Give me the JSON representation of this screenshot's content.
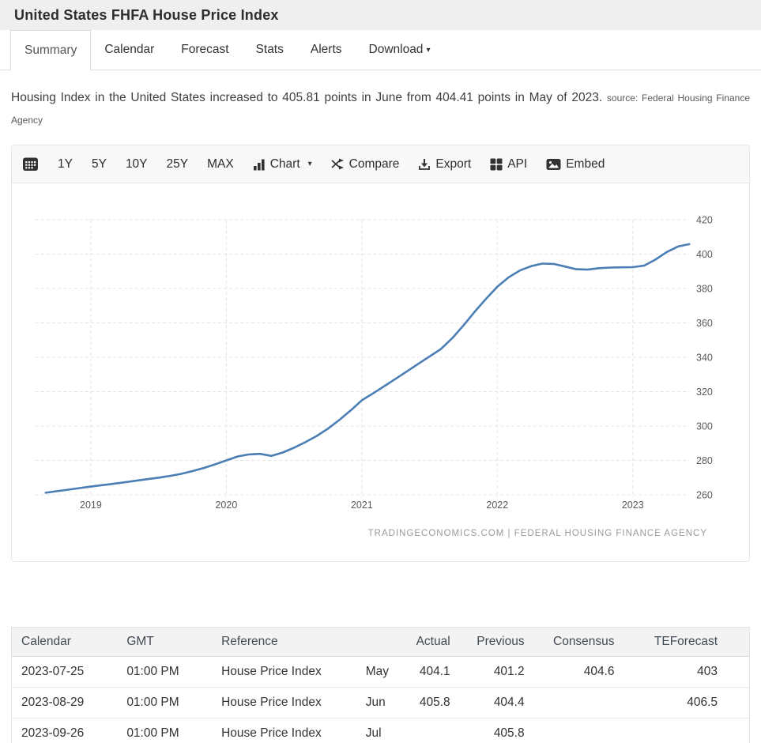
{
  "header": {
    "title": "United States FHFA House Price Index"
  },
  "tabs": {
    "items": [
      {
        "label": "Summary",
        "active": true
      },
      {
        "label": "Calendar",
        "active": false
      },
      {
        "label": "Forecast",
        "active": false
      },
      {
        "label": "Stats",
        "active": false
      },
      {
        "label": "Alerts",
        "active": false
      },
      {
        "label": "Download",
        "active": false
      }
    ]
  },
  "description": {
    "text": "Housing Index in the United States increased to 405.81 points in June from 404.41 points in May of 2023.",
    "source": "source: Federal Housing Finance Agency"
  },
  "toolbar": {
    "calendar_icon": "calendar-icon",
    "ranges": [
      "1Y",
      "5Y",
      "10Y",
      "25Y",
      "MAX"
    ],
    "chart": "Chart",
    "compare": "Compare",
    "export": "Export",
    "api": "API",
    "embed": "Embed"
  },
  "chart_data": {
    "type": "line",
    "title": "United States FHFA House Price Index",
    "xlabel": "",
    "ylabel": "",
    "ylim": [
      260,
      420
    ],
    "ytick_step": 20,
    "yticks": [
      260,
      280,
      300,
      320,
      340,
      360,
      380,
      400,
      420
    ],
    "xtick_labels": [
      "2019",
      "2020",
      "2021",
      "2022",
      "2023"
    ],
    "grid": "dashed",
    "legend": "none",
    "line_color": "#4a7eb5",
    "x": [
      "2018-09",
      "2018-10",
      "2018-11",
      "2018-12",
      "2019-01",
      "2019-02",
      "2019-03",
      "2019-04",
      "2019-05",
      "2019-06",
      "2019-07",
      "2019-08",
      "2019-09",
      "2019-10",
      "2019-11",
      "2019-12",
      "2020-01",
      "2020-02",
      "2020-03",
      "2020-04",
      "2020-05",
      "2020-06",
      "2020-07",
      "2020-08",
      "2020-09",
      "2020-10",
      "2020-11",
      "2020-12",
      "2021-01",
      "2021-02",
      "2021-03",
      "2021-04",
      "2021-05",
      "2021-06",
      "2021-07",
      "2021-08",
      "2021-09",
      "2021-10",
      "2021-11",
      "2021-12",
      "2022-01",
      "2022-02",
      "2022-03",
      "2022-04",
      "2022-05",
      "2022-06",
      "2022-07",
      "2022-08",
      "2022-09",
      "2022-10",
      "2022-11",
      "2022-12",
      "2023-01",
      "2023-02",
      "2023-03",
      "2023-04",
      "2023-05",
      "2023-06"
    ],
    "values": [
      261.2,
      262.1,
      263.0,
      263.9,
      264.8,
      265.6,
      266.4,
      267.3,
      268.2,
      269.1,
      270.0,
      271.0,
      272.2,
      273.8,
      275.6,
      277.7,
      280.0,
      282.3,
      283.5,
      283.8,
      282.6,
      284.6,
      287.4,
      290.6,
      294.2,
      298.5,
      303.5,
      309.0,
      315.0,
      319.0,
      323.2,
      327.5,
      331.8,
      336.2,
      340.5,
      344.8,
      351.0,
      358.5,
      366.5,
      374.0,
      381.0,
      386.5,
      390.5,
      393.0,
      394.5,
      394.3,
      392.8,
      391.2,
      391.0,
      391.8,
      392.2,
      392.3,
      392.4,
      393.3,
      396.8,
      401.2,
      404.4,
      405.8
    ]
  },
  "watermark": {
    "text": "TRADINGECONOMICS.COM | FEDERAL HOUSING FINANCE AGENCY"
  },
  "table": {
    "headers": [
      "Calendar",
      "GMT",
      "Reference",
      "",
      "Actual",
      "Previous",
      "Consensus",
      "TEForecast"
    ],
    "rows": [
      {
        "calendar": "2023-07-25",
        "gmt": "01:00 PM",
        "reference": "House Price Index",
        "period": "May",
        "actual": "404.1",
        "previous": "401.2",
        "consensus": "404.6",
        "teforecast": "403"
      },
      {
        "calendar": "2023-08-29",
        "gmt": "01:00 PM",
        "reference": "House Price Index",
        "period": "Jun",
        "actual": "405.8",
        "previous": "404.4",
        "consensus": "",
        "teforecast": "406.5"
      },
      {
        "calendar": "2023-09-26",
        "gmt": "01:00 PM",
        "reference": "House Price Index",
        "period": "Jul",
        "actual": "",
        "previous": "405.8",
        "consensus": "",
        "teforecast": ""
      }
    ]
  },
  "colors": {
    "line": "#4a7eb5",
    "title_bar_bg": "#efefef",
    "toolbar_bg": "#f8f8f8",
    "grid_line": "#e4e4e4",
    "watermark": "#9a9a9a"
  }
}
